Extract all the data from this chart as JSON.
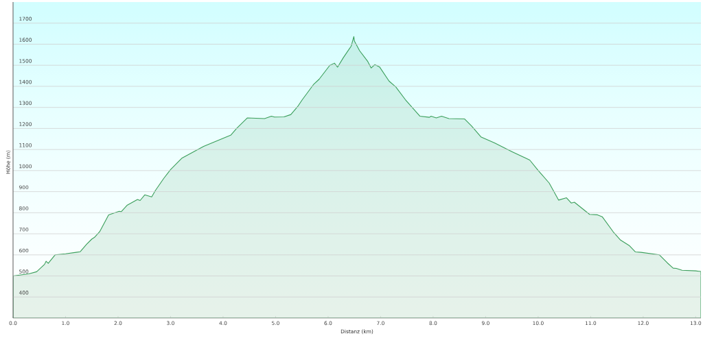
{
  "chart_data": {
    "type": "area",
    "xlabel": "Distanz  (km)",
    "ylabel": "Höhe (m)",
    "xlim": [
      0,
      13.1
    ],
    "ylim": [
      300,
      1800
    ],
    "xticks": [
      {
        "value": 0,
        "label": "0.0"
      },
      {
        "value": 1,
        "label": "1.0"
      },
      {
        "value": 2,
        "label": "2.0"
      },
      {
        "value": 3,
        "label": "3.0"
      },
      {
        "value": 4,
        "label": "4.0"
      },
      {
        "value": 5,
        "label": "5.0"
      },
      {
        "value": 6,
        "label": "6.0"
      },
      {
        "value": 7,
        "label": "7.0"
      },
      {
        "value": 8,
        "label": "8.0"
      },
      {
        "value": 9,
        "label": "9.0"
      },
      {
        "value": 10,
        "label": "10.0"
      },
      {
        "value": 11,
        "label": "11.0"
      },
      {
        "value": 12,
        "label": "12.0"
      },
      {
        "value": 13,
        "label": "13.0"
      }
    ],
    "yticks": [
      400,
      500,
      600,
      700,
      800,
      900,
      1000,
      1100,
      1200,
      1300,
      1400,
      1500,
      1600,
      1700
    ],
    "grid": "y",
    "marker": "none",
    "line_style": "solid",
    "x": [
      0,
      0.3,
      0.45,
      0.6,
      0.63,
      0.67,
      0.8,
      1.0,
      1.2,
      1.28,
      1.4,
      1.5,
      1.55,
      1.65,
      1.82,
      2.02,
      2.06,
      2.17,
      2.37,
      2.42,
      2.51,
      2.64,
      2.71,
      2.87,
      3.0,
      3.22,
      3.63,
      3.89,
      4.15,
      4.26,
      4.46,
      4.79,
      4.92,
      4.98,
      5.16,
      5.29,
      5.42,
      5.51,
      5.72,
      5.83,
      6.03,
      6.12,
      6.18,
      6.29,
      6.44,
      6.49,
      6.5,
      6.6,
      6.75,
      6.82,
      6.89,
      6.98,
      7.16,
      7.29,
      7.47,
      7.75,
      7.93,
      7.96,
      8.06,
      8.16,
      8.3,
      8.6,
      8.73,
      8.91,
      9.17,
      9.5,
      9.84,
      10.0,
      10.21,
      10.39,
      10.54,
      10.63,
      10.69,
      10.98,
      11.13,
      11.22,
      11.43,
      11.57,
      11.74,
      11.85,
      11.96,
      12.31,
      12.46,
      12.57,
      12.63,
      12.74,
      13.0,
      13.1
    ],
    "series": [
      {
        "color": "#3a9e5a",
        "values": [
          500,
          510,
          520,
          555,
          570,
          560,
          600,
          605,
          612,
          615,
          650,
          675,
          683,
          710,
          790,
          807,
          805,
          835,
          863,
          858,
          885,
          875,
          905,
          963,
          1005,
          1060,
          1115,
          1142,
          1169,
          1201,
          1250,
          1247,
          1258,
          1254,
          1255,
          1266,
          1304,
          1337,
          1408,
          1434,
          1499,
          1510,
          1491,
          1536,
          1591,
          1636,
          1615,
          1569,
          1520,
          1487,
          1503,
          1492,
          1425,
          1397,
          1337,
          1258,
          1253,
          1258,
          1250,
          1258,
          1247,
          1245,
          1212,
          1160,
          1131,
          1090,
          1050,
          1001,
          941,
          860,
          871,
          846,
          850,
          792,
          790,
          781,
          709,
          670,
          643,
          614,
          612,
          600,
          562,
          537,
          536,
          527,
          524,
          521
        ]
      }
    ]
  }
}
